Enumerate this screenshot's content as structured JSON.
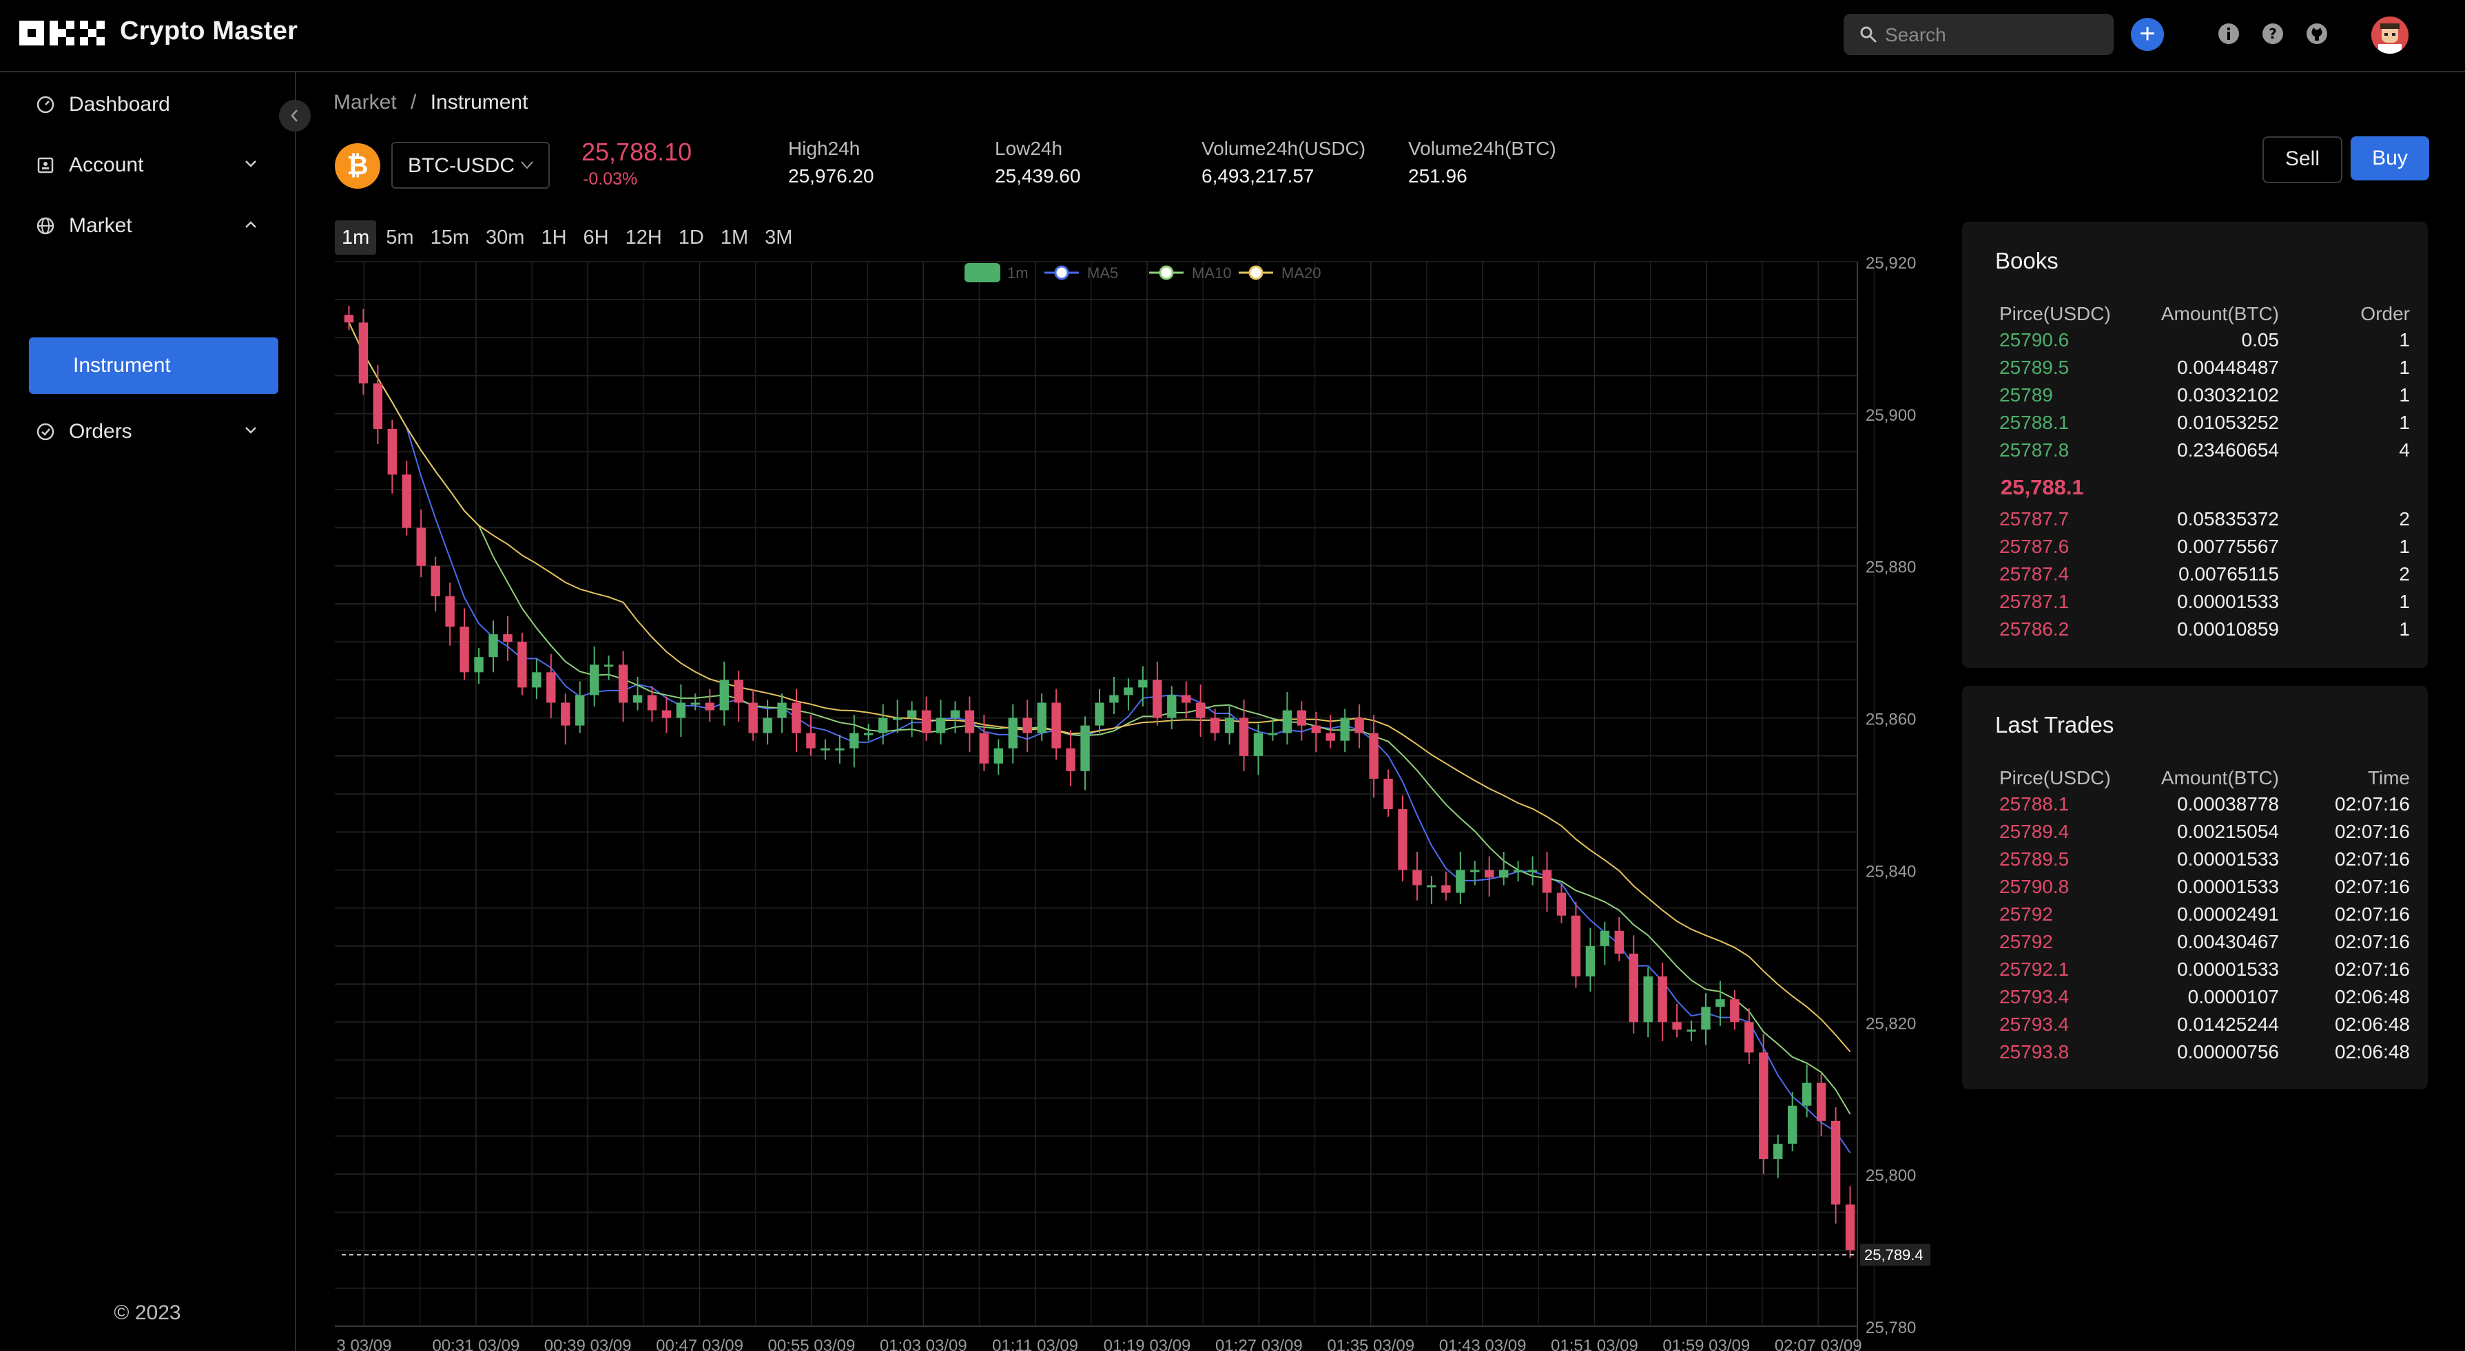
{
  "app": {
    "title": "Crypto Master"
  },
  "search": {
    "placeholder": "Search"
  },
  "sidebar": {
    "items": [
      {
        "label": "Dashboard",
        "icon": "dashboard-icon"
      },
      {
        "label": "Account",
        "icon": "account-icon"
      },
      {
        "label": "Market",
        "icon": "globe-icon"
      },
      {
        "label": "Instrument",
        "icon": ""
      },
      {
        "label": "Orders",
        "icon": "orders-icon"
      }
    ],
    "copyright": "© 2023"
  },
  "breadcrumb": {
    "parent": "Market",
    "separator": "/",
    "current": "Instrument"
  },
  "instrument": {
    "pair": "BTC-USDC",
    "last_price": "25,788.10",
    "change": "-0.03%",
    "stats": [
      {
        "label": "High24h",
        "value": "25,976.20"
      },
      {
        "label": "Low24h",
        "value": "25,439.60"
      },
      {
        "label": "Volume24h(USDC)",
        "value": "6,493,217.57"
      },
      {
        "label": "Volume24h(BTC)",
        "value": "251.96"
      }
    ]
  },
  "actions": {
    "sell": "Sell",
    "buy": "Buy"
  },
  "timeframes": [
    "1m",
    "5m",
    "15m",
    "30m",
    "1H",
    "6H",
    "12H",
    "1D",
    "1M",
    "3M"
  ],
  "timeframe_active": "1m",
  "colors": {
    "accent": "#2f6ee0",
    "up": "#4caf6a",
    "down": "#e04a6a",
    "ma5": "#4a6cf0",
    "ma10": "#8fd07a",
    "ma20": "#e6c35c"
  },
  "chart_data": {
    "type": "candlestick",
    "legend": [
      "1m",
      "MA5",
      "MA10",
      "MA20"
    ],
    "legend_placement": "top-center",
    "ylim": [
      25780,
      25920
    ],
    "y_ticks": [
      "25,920",
      "25,900",
      "25,880",
      "25,860",
      "25,840",
      "25,820",
      "25,800",
      "25,780"
    ],
    "x_ticks": [
      "3 03/09",
      "00:31 03/09",
      "00:39 03/09",
      "00:47 03/09",
      "00:55 03/09",
      "01:03 03/09",
      "01:11 03/09",
      "01:19 03/09",
      "01:27 03/09",
      "01:35 03/09",
      "01:43 03/09",
      "01:51 03/09",
      "01:59 03/09",
      "02:07 03/09"
    ],
    "current_price_label": "25,789.4",
    "current_price": 25789.4,
    "grid": true,
    "closes": [
      25912,
      25904,
      25898,
      25892,
      25885,
      25880,
      25876,
      25872,
      25866,
      25868,
      25871,
      25870,
      25864,
      25866,
      25862,
      25859,
      25863,
      25867,
      25867,
      25862,
      25863,
      25861,
      25860,
      25862,
      25862,
      25861,
      25865,
      25862,
      25858,
      25860,
      25862,
      25858,
      25856,
      25856,
      25856,
      25858,
      25858,
      25860,
      25860,
      25861,
      25858,
      25860,
      25861,
      25858,
      25854,
      25856,
      25860,
      25858,
      25862,
      25856,
      25853,
      25859,
      25862,
      25863,
      25864,
      25865,
      25860,
      25863,
      25862,
      25860,
      25858,
      25860,
      25855,
      25858,
      25858,
      25861,
      25859,
      25858,
      25857,
      25860,
      25858,
      25852,
      25848,
      25840,
      25838,
      25838,
      25837,
      25840,
      25840,
      25839,
      25840,
      25840,
      25840,
      25837,
      25834,
      25826,
      25830,
      25832,
      25829,
      25820,
      25826,
      25820,
      25819,
      25819,
      25822,
      25823,
      25820,
      25816,
      25802,
      25804,
      25809,
      25812,
      25807,
      25796,
      25790
    ]
  },
  "orderbook": {
    "title": "Books",
    "headers": [
      "Pirce(USDC)",
      "Amount(BTC)",
      "Order"
    ],
    "asks": [
      [
        "25790.6",
        "0.05",
        "1"
      ],
      [
        "25789.5",
        "0.00448487",
        "1"
      ],
      [
        "25789",
        "0.03032102",
        "1"
      ],
      [
        "25788.1",
        "0.01053252",
        "1"
      ],
      [
        "25787.8",
        "0.23460654",
        "4"
      ]
    ],
    "mid": "25,788.1",
    "bids": [
      [
        "25787.7",
        "0.05835372",
        "2"
      ],
      [
        "25787.6",
        "0.00775567",
        "1"
      ],
      [
        "25787.4",
        "0.00765115",
        "2"
      ],
      [
        "25787.1",
        "0.00001533",
        "1"
      ],
      [
        "25786.2",
        "0.00010859",
        "1"
      ]
    ]
  },
  "trades": {
    "title": "Last Trades",
    "headers": [
      "Pirce(USDC)",
      "Amount(BTC)",
      "Time"
    ],
    "rows": [
      [
        "25788.1",
        "0.00038778",
        "02:07:16"
      ],
      [
        "25789.4",
        "0.00215054",
        "02:07:16"
      ],
      [
        "25789.5",
        "0.00001533",
        "02:07:16"
      ],
      [
        "25790.8",
        "0.00001533",
        "02:07:16"
      ],
      [
        "25792",
        "0.00002491",
        "02:07:16"
      ],
      [
        "25792",
        "0.00430467",
        "02:07:16"
      ],
      [
        "25792.1",
        "0.00001533",
        "02:07:16"
      ],
      [
        "25793.4",
        "0.0000107",
        "02:06:48"
      ],
      [
        "25793.4",
        "0.01425244",
        "02:06:48"
      ],
      [
        "25793.8",
        "0.00000756",
        "02:06:48"
      ]
    ]
  }
}
